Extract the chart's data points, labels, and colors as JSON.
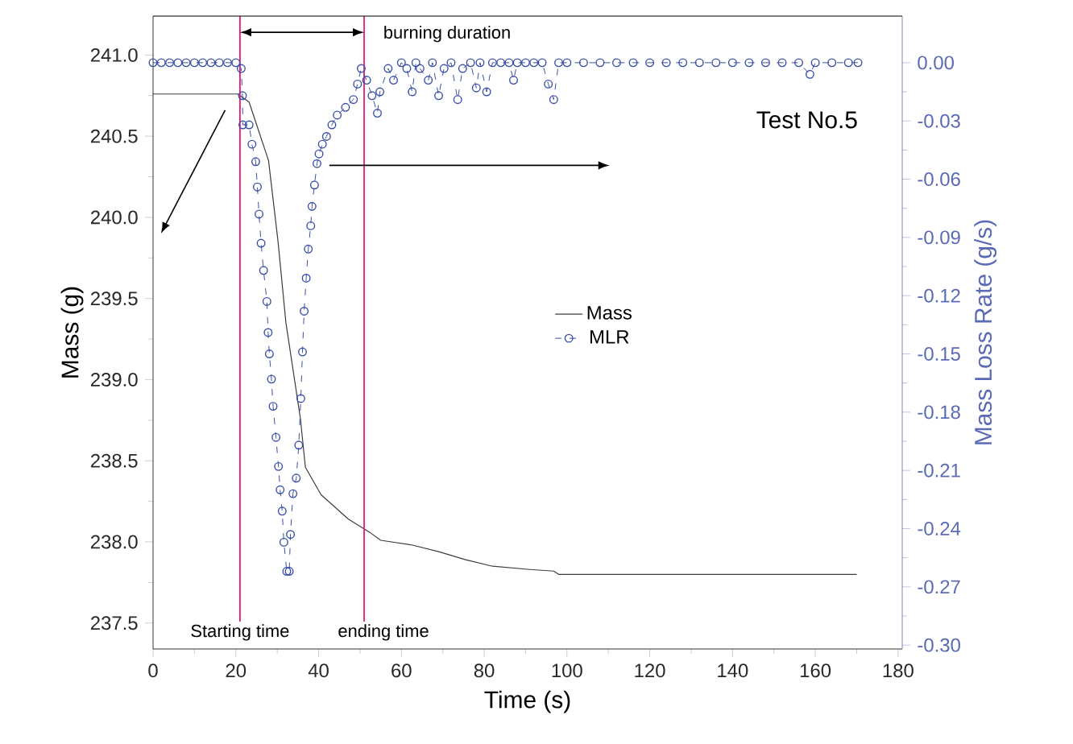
{
  "chart_data": {
    "type": "line",
    "xlabel": "Time (s)",
    "ylabel": "Mass (g)",
    "y2label": "Mass Loss Rate (g/s)",
    "xlim": [
      0,
      181
    ],
    "xticks": [
      0,
      20,
      40,
      60,
      80,
      100,
      120,
      140,
      160,
      180
    ],
    "ylim": [
      237.34,
      241.24
    ],
    "yticks": [
      {
        "value": 237.5,
        "label": "237.5"
      },
      {
        "value": 238.0,
        "label": "238.0"
      },
      {
        "value": 238.5,
        "label": "238.5"
      },
      {
        "value": 239.0,
        "label": "239.0"
      },
      {
        "value": 239.5,
        "label": "239.5"
      },
      {
        "value": 240.0,
        "label": "240.0"
      },
      {
        "value": 240.5,
        "label": "240.5"
      },
      {
        "value": 241.0,
        "label": "241.0"
      }
    ],
    "y2lim": [
      -0.302,
      0.024
    ],
    "y2ticks": [
      {
        "value": -0.3,
        "label": "-0.30"
      },
      {
        "value": -0.27,
        "label": "-0.27"
      },
      {
        "value": -0.24,
        "label": "-0.24"
      },
      {
        "value": -0.21,
        "label": "-0.21"
      },
      {
        "value": -0.18,
        "label": "-0.18"
      },
      {
        "value": -0.15,
        "label": "-0.15"
      },
      {
        "value": -0.12,
        "label": "-0.12"
      },
      {
        "value": -0.09,
        "label": "-0.09"
      },
      {
        "value": -0.06,
        "label": "-0.06"
      },
      {
        "value": -0.03,
        "label": "-0.03"
      },
      {
        "value": 0.0,
        "label": "0.00"
      }
    ],
    "legend": "center",
    "series": [
      {
        "name": "Mass",
        "color": "#3c3c3c",
        "marker": "none",
        "line_style": "solid",
        "x": [
          0,
          10,
          20.5,
          23.2,
          27.9,
          30.2,
          32.1,
          34,
          35.6,
          36.8,
          40.6,
          47.2,
          52.3,
          55,
          62.7,
          69,
          75.5,
          82,
          91,
          96.8,
          98,
          129.7,
          170
        ],
        "values": [
          240.76,
          240.76,
          240.76,
          240.71,
          240.35,
          239.85,
          239.35,
          239.03,
          238.76,
          238.46,
          238.29,
          238.14,
          238.06,
          238.01,
          237.98,
          237.94,
          237.89,
          237.85,
          237.83,
          237.82,
          237.8,
          237.8,
          237.8
        ]
      },
      {
        "name": "MLR",
        "color": "#3a4fa8",
        "axis": "y2",
        "marker": "circle",
        "line_style": "dashed",
        "x": [
          0,
          2,
          4,
          6,
          8,
          10,
          12,
          14,
          16,
          18,
          20,
          21.3,
          21.6,
          21.7,
          23.2,
          23.9,
          24.8,
          25.2,
          25.6,
          26.1,
          26.7,
          27.5,
          27.8,
          28.1,
          28.6,
          29.0,
          29.7,
          30.3,
          30.7,
          31.2,
          31.6,
          32.3,
          32.9,
          33.2,
          33.8,
          34.6,
          35.2,
          35.7,
          36.1,
          36.5,
          37.0,
          37.5,
          38.1,
          38.4,
          39.0,
          39.6,
          40.1,
          40.9,
          41.9,
          43.2,
          44.5,
          46.5,
          48.4,
          49.4,
          50.3,
          51.6,
          52.9,
          54.2,
          54.8,
          56.8,
          58.1,
          60,
          61.3,
          62.6,
          63.5,
          64.5,
          66.5,
          67.5,
          69.0,
          70.3,
          72,
          73.6,
          74.8,
          76.7,
          78.1,
          79,
          80.6,
          82,
          84,
          86,
          87.1,
          88,
          90,
          92,
          94,
          95.5,
          96.8,
          98,
          100,
          104,
          108,
          112,
          116,
          120,
          124,
          128,
          132,
          136,
          140,
          144,
          148,
          152,
          156,
          158.7,
          160,
          164,
          168,
          170.3
        ],
        "values": [
          0,
          0,
          0,
          0,
          0,
          0,
          0,
          0,
          0,
          0,
          0,
          -0.003,
          -0.017,
          -0.032,
          -0.032,
          -0.042,
          -0.051,
          -0.064,
          -0.078,
          -0.093,
          -0.107,
          -0.123,
          -0.139,
          -0.15,
          -0.163,
          -0.177,
          -0.193,
          -0.208,
          -0.22,
          -0.231,
          -0.247,
          -0.262,
          -0.262,
          -0.243,
          -0.222,
          -0.214,
          -0.197,
          -0.173,
          -0.149,
          -0.128,
          -0.111,
          -0.096,
          -0.084,
          -0.074,
          -0.063,
          -0.052,
          -0.047,
          -0.042,
          -0.038,
          -0.032,
          -0.027,
          -0.023,
          -0.019,
          -0.011,
          -0.003,
          -0.009,
          -0.017,
          -0.026,
          -0.015,
          -0.003,
          -0.009,
          0,
          -0.003,
          -0.015,
          0,
          -0.003,
          -0.009,
          0,
          -0.017,
          -0.003,
          0,
          -0.019,
          -0.003,
          0,
          -0.013,
          0,
          -0.015,
          0,
          0,
          0,
          -0.009,
          0,
          0,
          0,
          0,
          -0.011,
          -0.019,
          0,
          0,
          0,
          0,
          0,
          0,
          0,
          0,
          0,
          0,
          0,
          0,
          0,
          0,
          0,
          0,
          -0.006,
          0,
          0,
          0,
          0
        ]
      }
    ],
    "ref_lines": [
      {
        "axis": "x",
        "value": 21,
        "label": "Starting time",
        "color": "#e6197d"
      },
      {
        "axis": "x",
        "value": 51,
        "label": "ending time",
        "color": "#e6197d"
      }
    ],
    "annotations": [
      "burning duration",
      "Test No.5"
    ]
  }
}
